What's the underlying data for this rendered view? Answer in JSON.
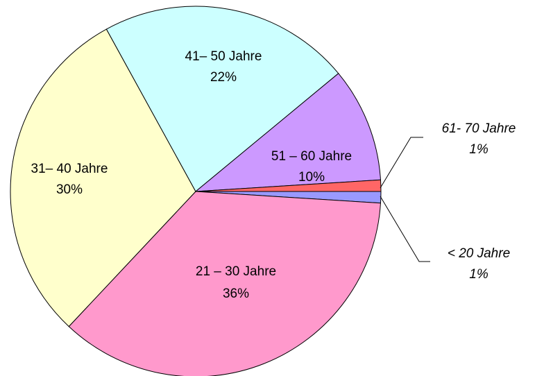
{
  "chart_data": {
    "type": "pie",
    "categories": [
      "< 20 Jahre",
      "21 – 30 Jahre",
      "31– 40 Jahre",
      "41– 50 Jahre",
      "51 – 60 Jahre",
      "61- 70 Jahre"
    ],
    "values": [
      1,
      36,
      30,
      22,
      10,
      1
    ],
    "value_labels": [
      "1%",
      "36%",
      "30%",
      "22%",
      "10%",
      "1%"
    ],
    "colors": [
      "#9999ff",
      "#ff99cc",
      "#ffffcc",
      "#ccffff",
      "#cc99ff",
      "#ff6666"
    ]
  }
}
